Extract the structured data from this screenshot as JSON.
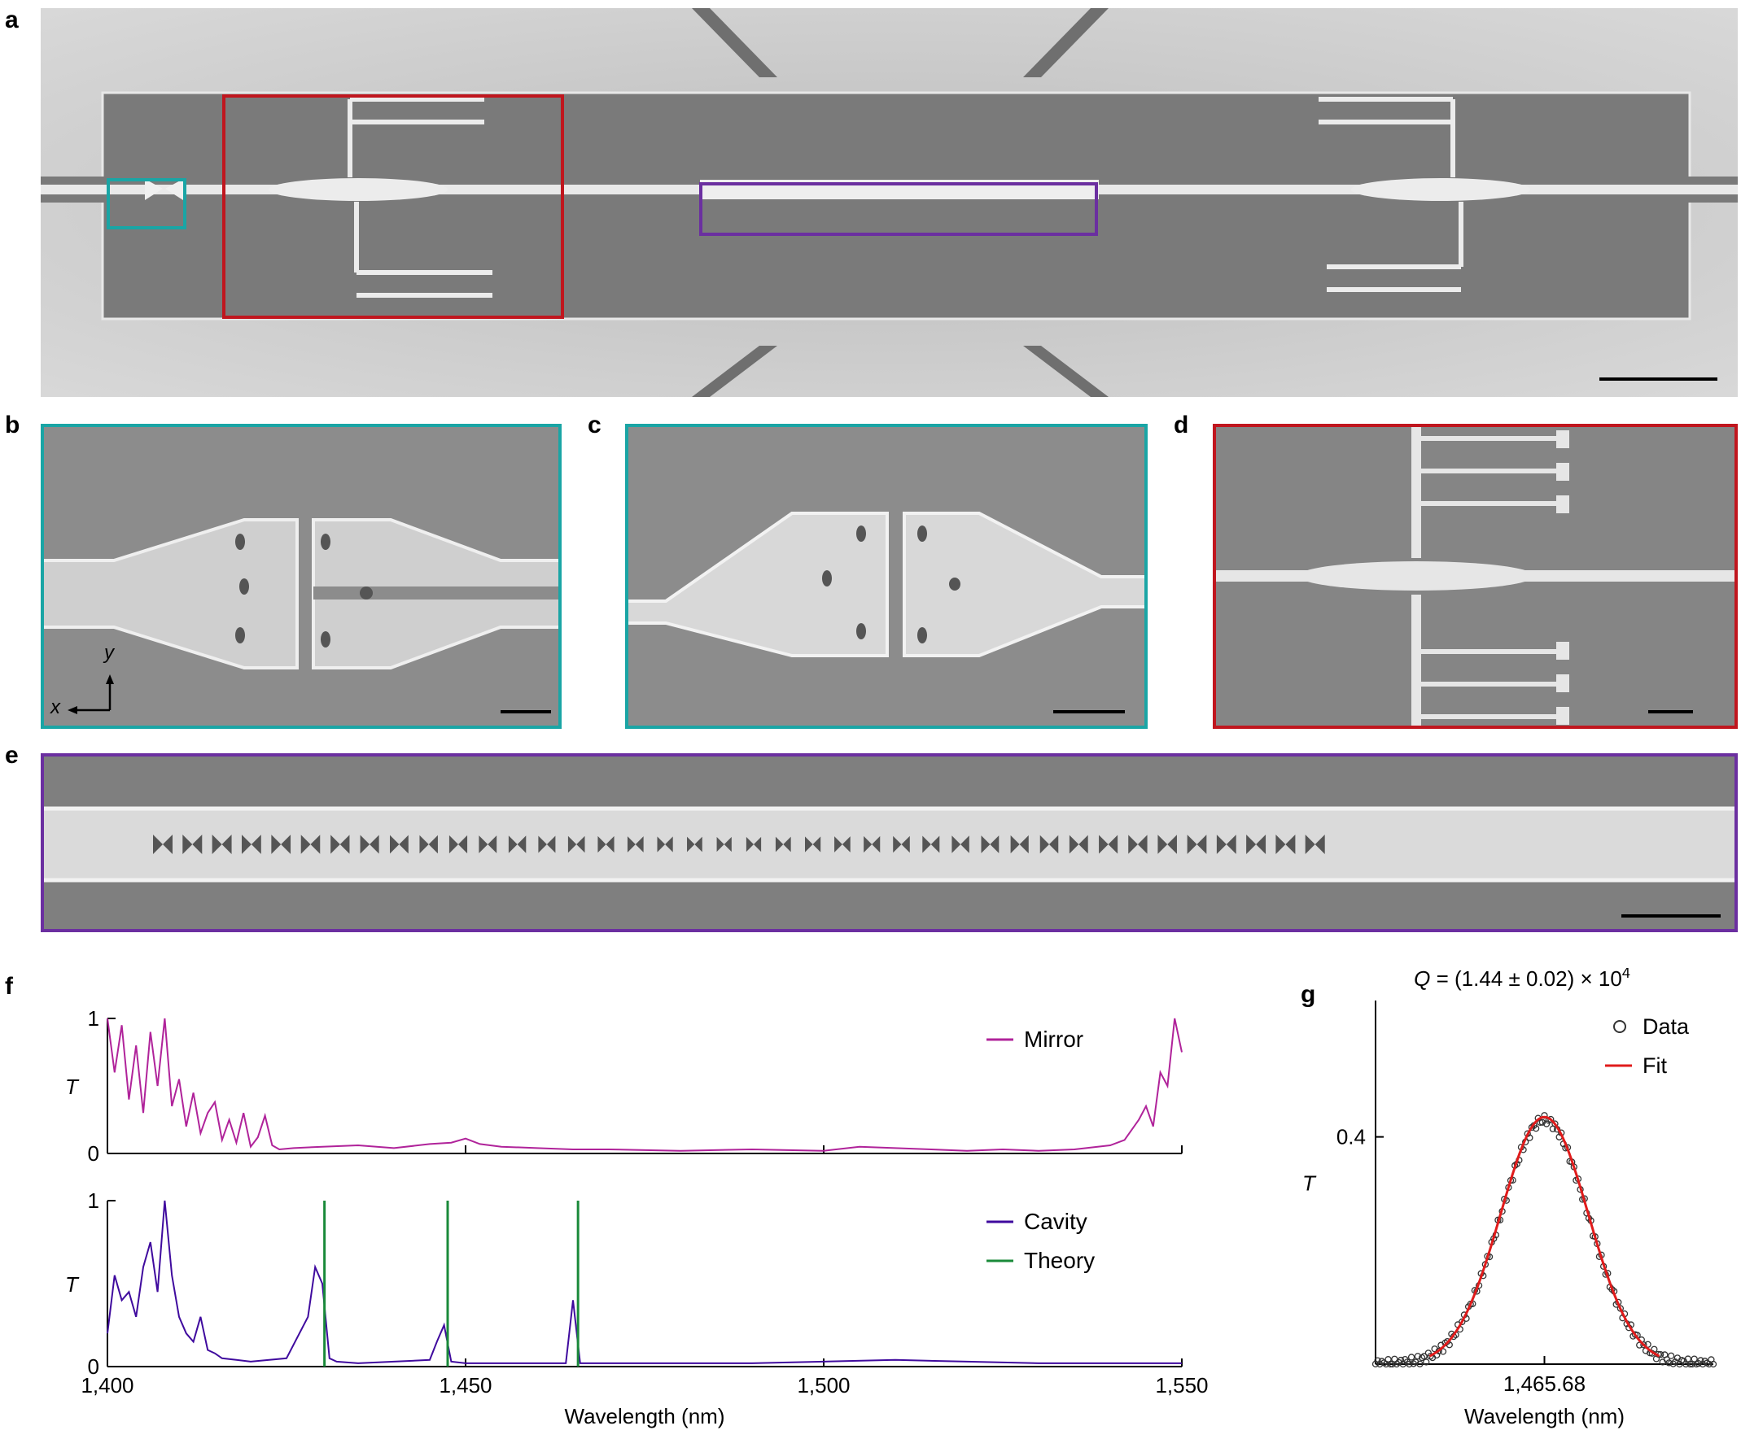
{
  "panels": {
    "a": {
      "letter": "a"
    },
    "b": {
      "letter": "b",
      "axis_y": "y",
      "axis_x": "x"
    },
    "c": {
      "letter": "c"
    },
    "d": {
      "letter": "d"
    },
    "e": {
      "letter": "e"
    },
    "f": {
      "letter": "f"
    },
    "g": {
      "letter": "g"
    }
  },
  "colors": {
    "teal": "#1aa5a5",
    "red": "#c0161e",
    "purple": "#6b2fa0",
    "mirror": "#b0239a",
    "cavity": "#3f0a9e",
    "theory": "#1a8a3a",
    "fit": "#e01b1b"
  },
  "chart_data": [
    {
      "type": "line",
      "panel": "f-top",
      "ylabel": "T",
      "xlim": [
        1400,
        1550
      ],
      "ylim": [
        0,
        1
      ],
      "yticks": [
        "0",
        "1"
      ],
      "legend": "top-right",
      "series": [
        {
          "name": "Mirror",
          "x": [
            1400,
            1401,
            1402,
            1403,
            1404,
            1405,
            1406,
            1407,
            1408,
            1409,
            1410,
            1411,
            1412,
            1413,
            1414,
            1415,
            1416,
            1417,
            1418,
            1419,
            1420,
            1421,
            1422,
            1423,
            1424,
            1426,
            1430,
            1435,
            1440,
            1445,
            1448,
            1450,
            1452,
            1455,
            1460,
            1465,
            1470,
            1480,
            1490,
            1500,
            1505,
            1510,
            1515,
            1520,
            1525,
            1530,
            1535,
            1540,
            1542,
            1544,
            1545,
            1546,
            1547,
            1548,
            1549,
            1550
          ],
          "y": [
            1.0,
            0.6,
            0.95,
            0.4,
            0.8,
            0.3,
            0.9,
            0.5,
            1.0,
            0.35,
            0.55,
            0.2,
            0.45,
            0.15,
            0.3,
            0.38,
            0.1,
            0.25,
            0.08,
            0.3,
            0.05,
            0.12,
            0.28,
            0.06,
            0.03,
            0.04,
            0.05,
            0.06,
            0.04,
            0.07,
            0.08,
            0.11,
            0.07,
            0.05,
            0.04,
            0.03,
            0.03,
            0.02,
            0.03,
            0.02,
            0.05,
            0.04,
            0.03,
            0.02,
            0.03,
            0.02,
            0.03,
            0.06,
            0.1,
            0.25,
            0.35,
            0.2,
            0.6,
            0.5,
            1.0,
            0.75
          ]
        }
      ]
    },
    {
      "type": "line",
      "panel": "f-bottom",
      "ylabel": "T",
      "xlabel": "Wavelength (nm)",
      "xlim": [
        1400,
        1550
      ],
      "ylim": [
        0,
        1
      ],
      "xticks": [
        "1,400",
        "1,450",
        "1,500",
        "1,550"
      ],
      "yticks": [
        "0",
        "1"
      ],
      "legend": "top-right",
      "series": [
        {
          "name": "Cavity",
          "x": [
            1400,
            1401,
            1402,
            1403,
            1404,
            1405,
            1406,
            1407,
            1408,
            1409,
            1410,
            1411,
            1412,
            1413,
            1414,
            1415,
            1416,
            1418,
            1420,
            1425,
            1428,
            1429,
            1430,
            1431,
            1432,
            1435,
            1440,
            1445,
            1446,
            1447,
            1448,
            1450,
            1455,
            1460,
            1464,
            1465,
            1466,
            1470,
            1480,
            1490,
            1500,
            1510,
            1520,
            1530,
            1540,
            1550
          ],
          "y": [
            0.2,
            0.55,
            0.4,
            0.45,
            0.3,
            0.6,
            0.75,
            0.45,
            1.0,
            0.55,
            0.3,
            0.2,
            0.15,
            0.3,
            0.1,
            0.08,
            0.05,
            0.04,
            0.03,
            0.05,
            0.3,
            0.6,
            0.5,
            0.05,
            0.03,
            0.02,
            0.03,
            0.04,
            0.15,
            0.25,
            0.03,
            0.02,
            0.02,
            0.02,
            0.02,
            0.4,
            0.02,
            0.02,
            0.02,
            0.02,
            0.03,
            0.04,
            0.03,
            0.02,
            0.02,
            0.02
          ]
        },
        {
          "name": "Theory",
          "spikes": [
            {
              "x": 1430.3,
              "y": 1.0
            },
            {
              "x": 1447.5,
              "y": 1.0
            },
            {
              "x": 1465.7,
              "y": 1.0
            }
          ]
        }
      ]
    },
    {
      "type": "scatter",
      "panel": "g",
      "title": "Q = (1.44 ± 0.02) × 10",
      "title_exp": "4",
      "ylabel": "T",
      "xlabel": "Wavelength (nm)",
      "xticks": [
        "1,465.68"
      ],
      "yticks": [
        "0.4"
      ],
      "legend": "top-right",
      "series": [
        {
          "name": "Data",
          "center": 1465.68,
          "peak": 0.43,
          "width": 0.0065
        },
        {
          "name": "Fit",
          "center": 1465.68,
          "peak": 0.435,
          "width": 0.0065
        }
      ]
    }
  ]
}
